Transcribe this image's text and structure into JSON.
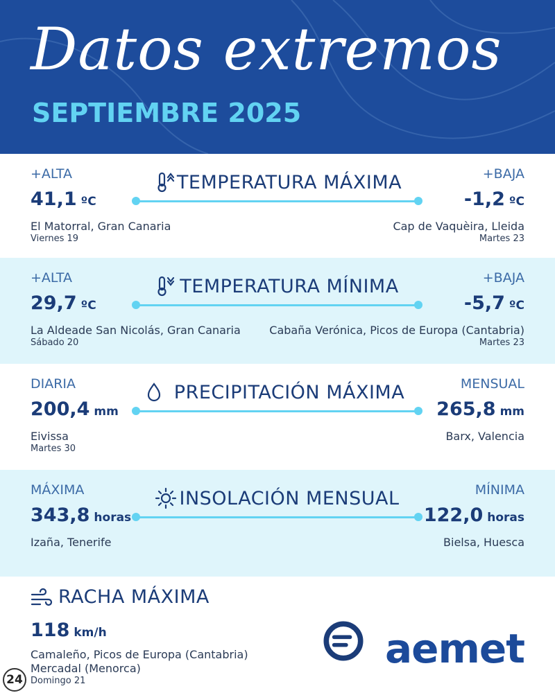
{
  "header": {
    "title": "Datos extremos",
    "subtitle": "SEPTIEMBRE 2025"
  },
  "sections": [
    {
      "title": "TEMPERATURA MÁXIMA",
      "left": {
        "label": "+ALTA",
        "value": "41,1",
        "unit": "ºC",
        "place": "El Matorral, Gran Canaria",
        "date": "Viernes 19"
      },
      "right": {
        "label": "+BAJA",
        "value": "-1,2",
        "unit": "ºC",
        "place": "Cap de Vaquèira, Lleida",
        "date": "Martes 23"
      }
    },
    {
      "title": "TEMPERATURA MÍNIMA",
      "left": {
        "label": "+ALTA",
        "value": "29,7",
        "unit": "ºC",
        "place": "La Aldeade San Nicolás, Gran Canaria",
        "date": "Sábado 20"
      },
      "right": {
        "label": "+BAJA",
        "value": "-5,7",
        "unit": "ºC",
        "place": "Cabaña Verónica, Picos de Europa (Cantabria)",
        "date": "Martes 23"
      }
    },
    {
      "title": "PRECIPITACIÓN MÁXIMA",
      "left": {
        "label": "DIARIA",
        "value": "200,4",
        "unit": "mm",
        "place": "Eivissa",
        "date": "Martes 30"
      },
      "right": {
        "label": "MENSUAL",
        "value": "265,8",
        "unit": "mm",
        "place": "Barx, Valencia"
      }
    },
    {
      "title": "INSOLACIÓN MENSUAL",
      "left": {
        "label": "MÁXIMA",
        "value": "343,8",
        "unit": "horas",
        "place": "Izaña, Tenerife"
      },
      "right": {
        "label": "MÍNIMA",
        "value": "122,0",
        "unit": "horas",
        "place": "Bielsa, Huesca"
      }
    }
  ],
  "gust": {
    "title": "RACHA MÁXIMA",
    "value": "118",
    "unit": "km/h",
    "places": [
      "Camaleño, Picos de Europa (Cantabria)",
      "Mercadal (Menorca)"
    ],
    "date": "Domingo 21"
  },
  "logo": "aemet",
  "badge": "24"
}
